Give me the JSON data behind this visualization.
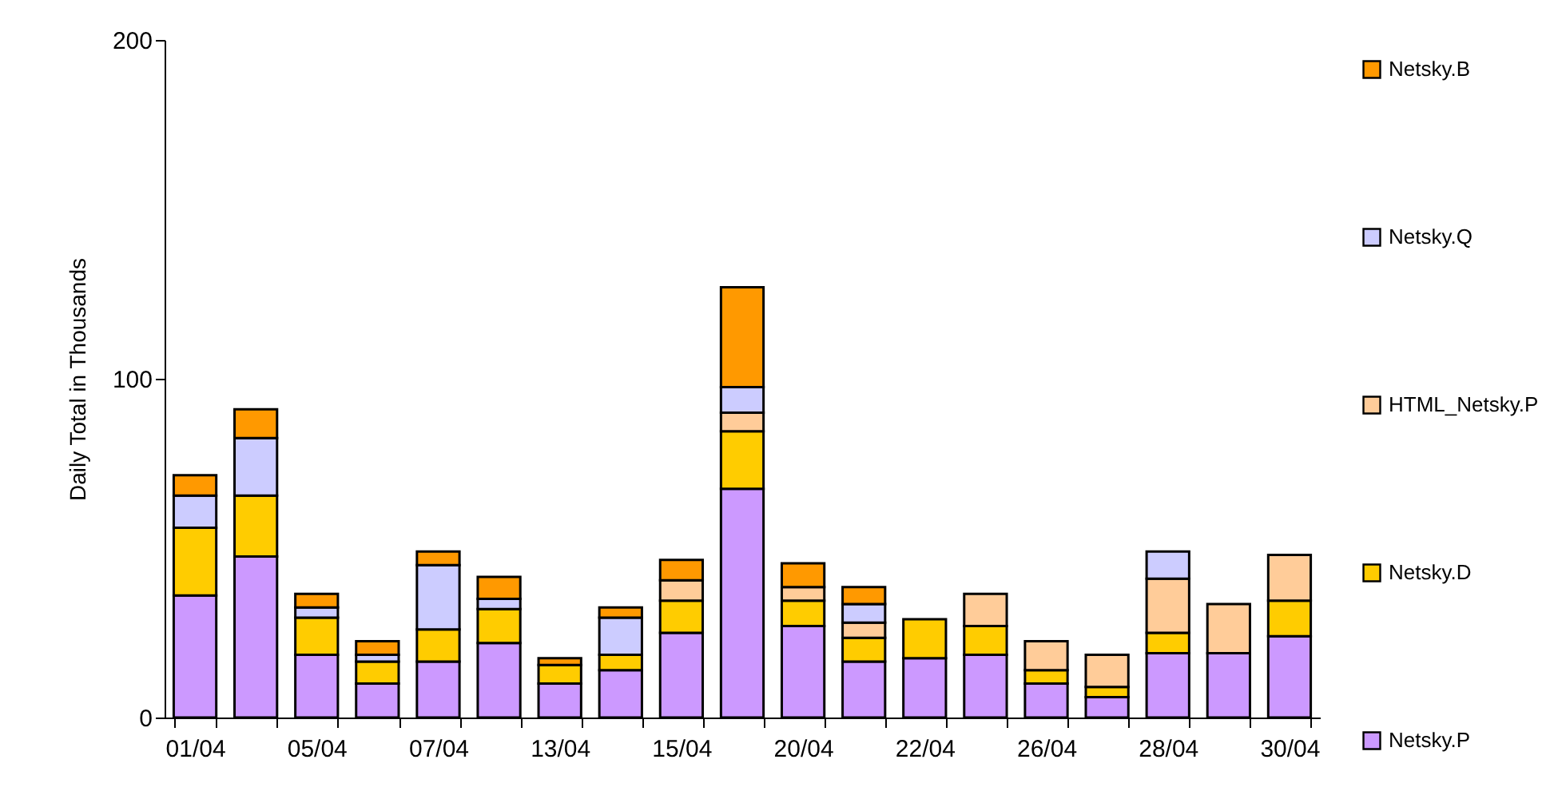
{
  "chart_data": {
    "type": "bar",
    "stacked": true,
    "ylabel": "Daily Total in Thousands",
    "categories": [
      "01/04",
      null,
      "05/04",
      null,
      "07/04",
      null,
      "13/04",
      null,
      "15/04",
      null,
      "20/04",
      null,
      "22/04",
      null,
      "26/04",
      null,
      "28/04",
      null,
      "30/04"
    ],
    "series": [
      {
        "name": "Netsky.P",
        "color": "#cc99ff",
        "values": [
          36,
          47.5,
          18.5,
          10,
          16.5,
          22,
          10,
          14,
          25,
          67.5,
          27,
          16.5,
          17.5,
          18.5,
          10,
          6,
          19,
          19,
          24
        ]
      },
      {
        "name": "Netsky.D",
        "color": "#ffcc00",
        "values": [
          20,
          18,
          11,
          6.5,
          9.5,
          10,
          5.5,
          4.5,
          9.5,
          17,
          7.5,
          7,
          11.5,
          8.5,
          4,
          3,
          6,
          null,
          10.5
        ]
      },
      {
        "name": "HTML_Netsky.P",
        "color": "#ffcc99",
        "values": [
          null,
          null,
          null,
          null,
          null,
          null,
          null,
          null,
          6,
          5.5,
          4,
          4.5,
          null,
          9.5,
          8.5,
          9.5,
          16,
          14.5,
          13.5
        ]
      },
      {
        "name": "Netsky.Q",
        "color": "#ccccff",
        "values": [
          9.5,
          17,
          3,
          2,
          19,
          3,
          null,
          11,
          null,
          7.5,
          null,
          5.5,
          null,
          null,
          null,
          null,
          8,
          null,
          null
        ]
      },
      {
        "name": "Netsky.B",
        "color": "#ff9900",
        "values": [
          6,
          8.5,
          4,
          4,
          4,
          6.5,
          2,
          3,
          6,
          29.5,
          7,
          5,
          null,
          null,
          null,
          null,
          null,
          null,
          null
        ]
      }
    ],
    "ylim": [
      0,
      200
    ],
    "yticks": [
      0,
      100,
      200
    ],
    "grid": false,
    "legend": "right"
  }
}
